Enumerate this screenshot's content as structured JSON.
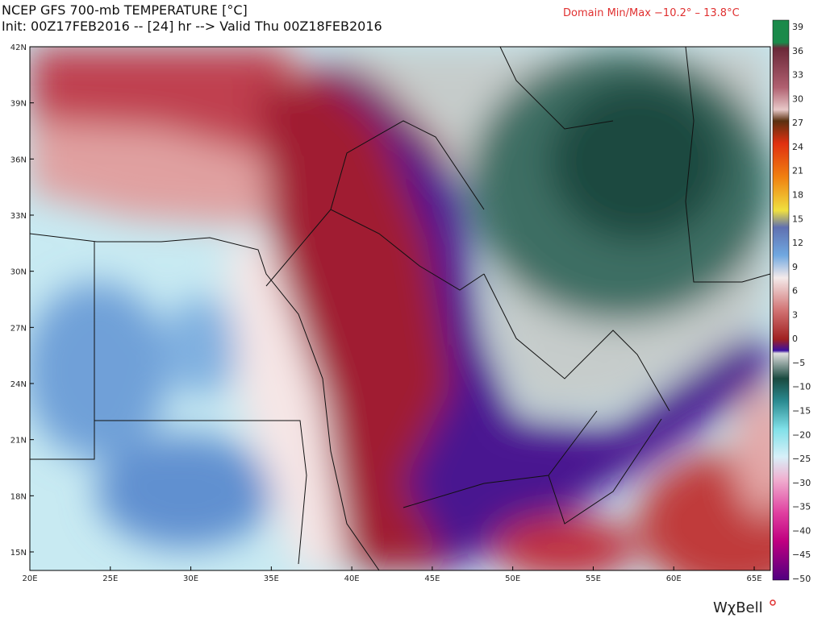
{
  "header": {
    "title": "NCEP GFS 700-mb TEMPERATURE [°C]",
    "init": "Init: 00Z17FEB2016 -- [24] hr --> Valid Thu 00Z18FEB2016",
    "domain": "Domain Min/Max −10.2° –  13.8°C"
  },
  "map": {
    "lat_labels": [
      "42N",
      "39N",
      "36N",
      "33N",
      "30N",
      "27N",
      "24N",
      "21N",
      "18N",
      "15N"
    ],
    "lon_labels": [
      "20E",
      "25E",
      "30E",
      "35E",
      "40E",
      "45E",
      "50E",
      "55E",
      "60E",
      "65E"
    ]
  },
  "colorbar": {
    "labels": [
      "39",
      "36",
      "33",
      "30",
      "27",
      "24",
      "21",
      "18",
      "15",
      "12",
      "9",
      "6",
      "3",
      "0",
      "−5",
      "−10",
      "−15",
      "−20",
      "−25",
      "−30",
      "−35",
      "−40",
      "−45",
      "−50"
    ]
  },
  "logo": "WχBell"
}
